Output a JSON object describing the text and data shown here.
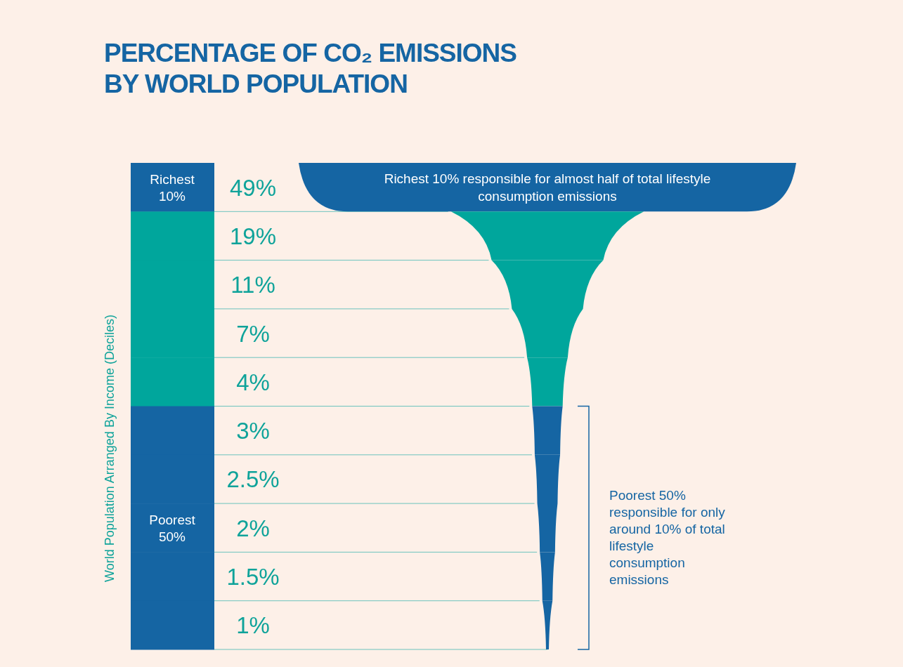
{
  "chart_data": {
    "type": "other",
    "title": "PERCENTAGE OF CO₂ EMISSIONS BY WORLD POPULATION",
    "ylabel": "World Population Arranged By Income (Deciles)",
    "categories": [
      "Richest 10%",
      null,
      null,
      null,
      null,
      null,
      null,
      "Poorest 50%",
      null,
      null
    ],
    "values": [
      49,
      19,
      11,
      7,
      4,
      3,
      2.5,
      2,
      1.5,
      1
    ],
    "value_labels": [
      "49%",
      "19%",
      "11%",
      "7%",
      "4%",
      "3%",
      "2.5%",
      "2%",
      "1.5%",
      "1%"
    ],
    "colors": [
      "#1565a3",
      "#00a69c",
      "#00a69c",
      "#00a69c",
      "#00a69c",
      "#1565a3",
      "#1565a3",
      "#1565a3",
      "#1565a3",
      "#1565a3"
    ],
    "annotations": [
      "Richest 10% responsible for almost half of total lifestyle consumption emissions",
      "Poorest 50% responsible for only around 10% of total lifestyle consumption emissions"
    ]
  }
}
